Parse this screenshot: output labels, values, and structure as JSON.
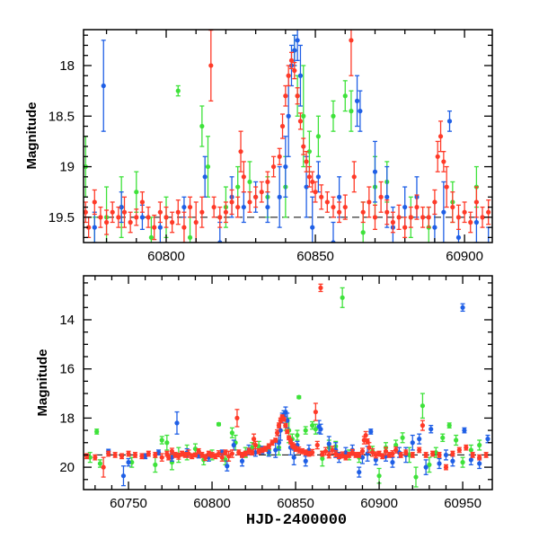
{
  "chart_data": [
    {
      "type": "scatter",
      "panel": "top",
      "title": "",
      "xlabel": "",
      "ylabel": "Magnitude",
      "xlim": [
        60772.3,
        60909.3
      ],
      "ylim": [
        19.75,
        17.645
      ],
      "y_inverted": true,
      "xticks": [
        60800,
        60850,
        60900
      ],
      "xtick_labels": [
        "60800",
        "60850",
        "60900"
      ],
      "yticks": [
        18,
        18.5,
        19,
        19.5
      ],
      "ytick_labels": [
        "18",
        "18.5",
        "19",
        "19.5"
      ],
      "x_minor_step": 10,
      "y_minor_step": 0.1,
      "reference_mag": 19.5,
      "grid": false
    },
    {
      "type": "scatter",
      "panel": "bottom",
      "title": "",
      "xlabel": "HJD-2400000",
      "ylabel": "Magnitude",
      "xlim": [
        60723.1,
        60967.7
      ],
      "ylim": [
        20.91,
        12.21
      ],
      "y_inverted": true,
      "xticks": [
        60750,
        60800,
        60850,
        60900,
        60950
      ],
      "xtick_labels": [
        "60750",
        "60800",
        "60850",
        "60900",
        "60950"
      ],
      "yticks": [
        14,
        16,
        18,
        20
      ],
      "ytick_labels": [
        "14",
        "16",
        "18",
        "20"
      ],
      "x_minor_step": 10,
      "y_minor_step": 0.5,
      "reference_mag": 19.5,
      "grid": false
    }
  ],
  "series": [
    {
      "name": "green",
      "color": "#3ee23a",
      "points": [
        [
          60727,
          19.6,
          0.2
        ],
        [
          60731,
          18.55,
          0.1
        ],
        [
          60733,
          19.85,
          0.15
        ],
        [
          60752,
          19.8,
          0.2
        ],
        [
          60766,
          19.9,
          0.3
        ],
        [
          60770,
          18.9,
          0.15
        ],
        [
          60773,
          19.0,
          0.3
        ],
        [
          60776,
          19.8,
          0.3
        ],
        [
          60780,
          19.5,
          0.3
        ],
        [
          60785,
          19.4,
          0.3
        ],
        [
          60790,
          19.25,
          0.2
        ],
        [
          60795,
          19.7,
          0.2
        ],
        [
          60800,
          19.5,
          0.2
        ],
        [
          60804,
          18.25,
          0.05
        ],
        [
          60808,
          19.7,
          0.2
        ],
        [
          60812,
          18.6,
          0.2
        ],
        [
          60814,
          19.0,
          0.3
        ],
        [
          60820,
          19.4,
          0.2
        ],
        [
          60824,
          19.2,
          0.2
        ],
        [
          60828,
          19.15,
          0.2
        ],
        [
          60834,
          19.3,
          0.2
        ],
        [
          60840,
          19.2,
          0.3
        ],
        [
          60843,
          17.85,
          0.15
        ],
        [
          60844,
          18.3,
          0.2
        ],
        [
          60846,
          18.5,
          0.5
        ],
        [
          60848,
          18.85,
          0.2
        ],
        [
          60851,
          18.7,
          0.2
        ],
        [
          60852,
          17.15,
          0.05
        ],
        [
          60856,
          18.5,
          0.15
        ],
        [
          60860,
          18.3,
          0.15
        ],
        [
          60862,
          18.45,
          0.2
        ],
        [
          60866,
          19.65,
          0.3
        ],
        [
          60870,
          19.2,
          0.3
        ],
        [
          60874,
          19.15,
          0.2
        ],
        [
          60878,
          13.1,
          0.4
        ],
        [
          60882,
          19.5,
          0.2
        ],
        [
          60888,
          19.6,
          0.2
        ],
        [
          60896,
          19.35,
          0.2
        ],
        [
          60900,
          20.35,
          0.3
        ],
        [
          60904,
          19.2,
          0.2
        ],
        [
          60910,
          19.1,
          0.2
        ],
        [
          60914,
          18.8,
          0.2
        ],
        [
          60918,
          19.5,
          0.3
        ],
        [
          60922,
          20.4,
          0.4
        ],
        [
          60926,
          17.5,
          0.5
        ],
        [
          60930,
          19.9,
          0.3
        ],
        [
          60934,
          19.4,
          0.2
        ],
        [
          60938,
          18.8,
          0.15
        ],
        [
          60942,
          18.3,
          0.1
        ],
        [
          60946,
          18.9,
          0.2
        ],
        [
          60950,
          19.8,
          0.2
        ],
        [
          60955,
          19.3,
          0.2
        ],
        [
          60960,
          19.1,
          0.2
        ]
      ]
    },
    {
      "name": "blue",
      "color": "#1f5fe6",
      "points": [
        [
          60738,
          19.35,
          0.08
        ],
        [
          60747,
          20.35,
          0.4
        ],
        [
          60750,
          19.8,
          0.15
        ],
        [
          60760,
          19.55,
          0.1
        ],
        [
          60768,
          19.4,
          0.1
        ],
        [
          60776,
          19.6,
          0.15
        ],
        [
          60779,
          18.2,
          0.45
        ],
        [
          60785,
          19.4,
          0.15
        ],
        [
          60792,
          19.5,
          0.12
        ],
        [
          60798,
          19.6,
          0.15
        ],
        [
          60806,
          19.4,
          0.1
        ],
        [
          60809,
          19.95,
          0.2
        ],
        [
          60813,
          19.1,
          0.2
        ],
        [
          60818,
          19.75,
          0.2
        ],
        [
          60822,
          19.3,
          0.2
        ],
        [
          60826,
          19.4,
          0.15
        ],
        [
          60830,
          19.3,
          0.15
        ],
        [
          60834,
          19.4,
          0.15
        ],
        [
          60838,
          19.3,
          0.3
        ],
        [
          60840,
          19.0,
          0.3
        ],
        [
          60841,
          18.5,
          0.4
        ],
        [
          60842,
          18.0,
          0.2
        ],
        [
          60843,
          17.85,
          0.15
        ],
        [
          60844,
          17.75,
          0.2
        ],
        [
          60845,
          18.1,
          0.3
        ],
        [
          60847,
          19.2,
          0.3
        ],
        [
          60849,
          19.6,
          0.3
        ],
        [
          60851,
          19.1,
          0.15
        ],
        [
          60856,
          19.75,
          0.2
        ],
        [
          60858,
          19.3,
          0.2
        ],
        [
          60864,
          18.35,
          0.25
        ],
        [
          60865,
          18.45,
          0.2
        ],
        [
          60870,
          19.05,
          0.3
        ],
        [
          60874,
          19.3,
          0.3
        ],
        [
          60876,
          19.6,
          0.2
        ],
        [
          60880,
          19.4,
          0.2
        ],
        [
          60884,
          19.3,
          0.2
        ],
        [
          60888,
          20.2,
          0.2
        ],
        [
          60890,
          19.6,
          0.25
        ],
        [
          60893,
          19.45,
          0.3
        ],
        [
          60895,
          18.55,
          0.1
        ],
        [
          60898,
          19.7,
          0.2
        ],
        [
          60904,
          19.55,
          0.2
        ],
        [
          60908,
          19.8,
          0.2
        ],
        [
          60912,
          19.4,
          0.2
        ],
        [
          60916,
          19.5,
          0.3
        ],
        [
          60920,
          19.0,
          0.3
        ],
        [
          60924,
          18.85,
          0.2
        ],
        [
          60928,
          20.0,
          0.3
        ],
        [
          60931,
          18.45,
          0.15
        ],
        [
          60936,
          19.85,
          0.2
        ],
        [
          60940,
          19.5,
          0.2
        ],
        [
          60944,
          19.75,
          0.2
        ],
        [
          60950,
          13.5,
          0.15
        ],
        [
          60951,
          18.5,
          0.1
        ],
        [
          60955,
          19.7,
          0.2
        ],
        [
          60960,
          19.85,
          0.2
        ],
        [
          60965,
          18.85,
          0.15
        ]
      ]
    },
    {
      "name": "red",
      "color": "#ff3a28",
      "points": [
        [
          60725,
          19.55,
          0.1
        ],
        [
          60730,
          19.6,
          0.1
        ],
        [
          60735,
          20.0,
          0.4
        ],
        [
          60738,
          19.45,
          0.1
        ],
        [
          60742,
          19.5,
          0.1
        ],
        [
          60746,
          19.55,
          0.1
        ],
        [
          60750,
          19.45,
          0.1
        ],
        [
          60754,
          19.5,
          0.1
        ],
        [
          60758,
          19.55,
          0.1
        ],
        [
          60762,
          19.45,
          0.1
        ],
        [
          60766,
          19.5,
          0.1
        ],
        [
          60770,
          19.6,
          0.15
        ],
        [
          60773,
          19.45,
          0.1
        ],
        [
          60774,
          19.6,
          0.1
        ],
        [
          60776,
          19.35,
          0.12
        ],
        [
          60778,
          19.5,
          0.1
        ],
        [
          60780,
          19.55,
          0.12
        ],
        [
          60782,
          19.45,
          0.1
        ],
        [
          60784,
          19.5,
          0.1
        ],
        [
          60786,
          19.45,
          0.15
        ],
        [
          60788,
          19.55,
          0.1
        ],
        [
          60790,
          19.5,
          0.08
        ],
        [
          60792,
          19.35,
          0.1
        ],
        [
          60794,
          19.5,
          0.1
        ],
        [
          60796,
          19.6,
          0.12
        ],
        [
          60798,
          19.45,
          0.1
        ],
        [
          60800,
          19.5,
          0.1
        ],
        [
          60802,
          19.55,
          0.1
        ],
        [
          60804,
          19.45,
          0.12
        ],
        [
          60806,
          19.6,
          0.15
        ],
        [
          60808,
          19.4,
          0.1
        ],
        [
          60810,
          19.55,
          0.2
        ],
        [
          60812,
          19.45,
          0.15
        ],
        [
          60815,
          18.0,
          0.35
        ],
        [
          60816,
          19.4,
          0.1
        ],
        [
          60818,
          19.5,
          0.1
        ],
        [
          60820,
          19.45,
          0.1
        ],
        [
          60822,
          19.35,
          0.12
        ],
        [
          60824,
          19.4,
          0.1
        ],
        [
          60825,
          18.85,
          0.2
        ],
        [
          60826,
          19.1,
          0.15
        ],
        [
          60828,
          19.35,
          0.1
        ],
        [
          60830,
          19.3,
          0.1
        ],
        [
          60832,
          19.25,
          0.1
        ],
        [
          60834,
          19.15,
          0.1
        ],
        [
          60836,
          19.0,
          0.1
        ],
        [
          60838,
          18.9,
          0.08
        ],
        [
          60839,
          18.6,
          0.12
        ],
        [
          60840,
          18.3,
          0.1
        ],
        [
          60841,
          18.1,
          0.1
        ],
        [
          60842,
          17.95,
          0.08
        ],
        [
          60843,
          18.05,
          0.08
        ],
        [
          60844,
          18.3,
          0.08
        ],
        [
          60845,
          18.55,
          0.08
        ],
        [
          60846,
          18.8,
          0.08
        ],
        [
          60847,
          18.95,
          0.1
        ],
        [
          60848,
          19.1,
          0.1
        ],
        [
          60849,
          19.15,
          0.1
        ],
        [
          60850,
          19.25,
          0.1
        ],
        [
          60852,
          19.3,
          0.12
        ],
        [
          60854,
          19.35,
          0.1
        ],
        [
          60856,
          19.4,
          0.1
        ],
        [
          60858,
          19.45,
          0.1
        ],
        [
          60860,
          19.4,
          0.12
        ],
        [
          60862,
          17.75,
          0.35
        ],
        [
          60863,
          19.1,
          0.15
        ],
        [
          60865,
          12.7,
          0.15
        ],
        [
          60866,
          19.45,
          0.1
        ],
        [
          60868,
          19.35,
          0.15
        ],
        [
          60870,
          19.5,
          0.12
        ],
        [
          60872,
          19.3,
          0.15
        ],
        [
          60874,
          19.45,
          0.12
        ],
        [
          60876,
          19.55,
          0.1
        ],
        [
          60878,
          19.5,
          0.12
        ],
        [
          60880,
          19.6,
          0.1
        ],
        [
          60882,
          19.5,
          0.1
        ],
        [
          60884,
          19.4,
          0.12
        ],
        [
          60886,
          19.5,
          0.1
        ],
        [
          60888,
          19.5,
          0.1
        ],
        [
          60890,
          19.35,
          0.12
        ],
        [
          60891,
          18.9,
          0.15
        ],
        [
          60892,
          18.7,
          0.15
        ],
        [
          60893,
          18.95,
          0.1
        ],
        [
          60894,
          19.2,
          0.2
        ],
        [
          60896,
          19.4,
          0.15
        ],
        [
          60898,
          19.5,
          0.12
        ],
        [
          60900,
          19.45,
          0.1
        ],
        [
          60902,
          19.55,
          0.1
        ],
        [
          60904,
          19.35,
          0.15
        ],
        [
          60906,
          19.5,
          0.1
        ],
        [
          60908,
          19.45,
          0.12
        ],
        [
          60910,
          19.3,
          0.12
        ],
        [
          60913,
          19.5,
          0.1
        ],
        [
          60916,
          19.4,
          0.1
        ],
        [
          60920,
          19.5,
          0.1
        ],
        [
          60924,
          19.3,
          0.1
        ],
        [
          60926,
          18.3,
          0.2
        ],
        [
          60928,
          19.5,
          0.1
        ],
        [
          60932,
          19.45,
          0.1
        ],
        [
          60936,
          19.5,
          0.1
        ],
        [
          60940,
          20.0,
          0.1
        ],
        [
          60944,
          19.45,
          0.1
        ],
        [
          60948,
          19.3,
          0.1
        ],
        [
          60952,
          19.2,
          0.1
        ],
        [
          60956,
          19.5,
          0.1
        ],
        [
          60960,
          19.6,
          0.1
        ],
        [
          60964,
          19.5,
          0.1
        ]
      ]
    }
  ]
}
